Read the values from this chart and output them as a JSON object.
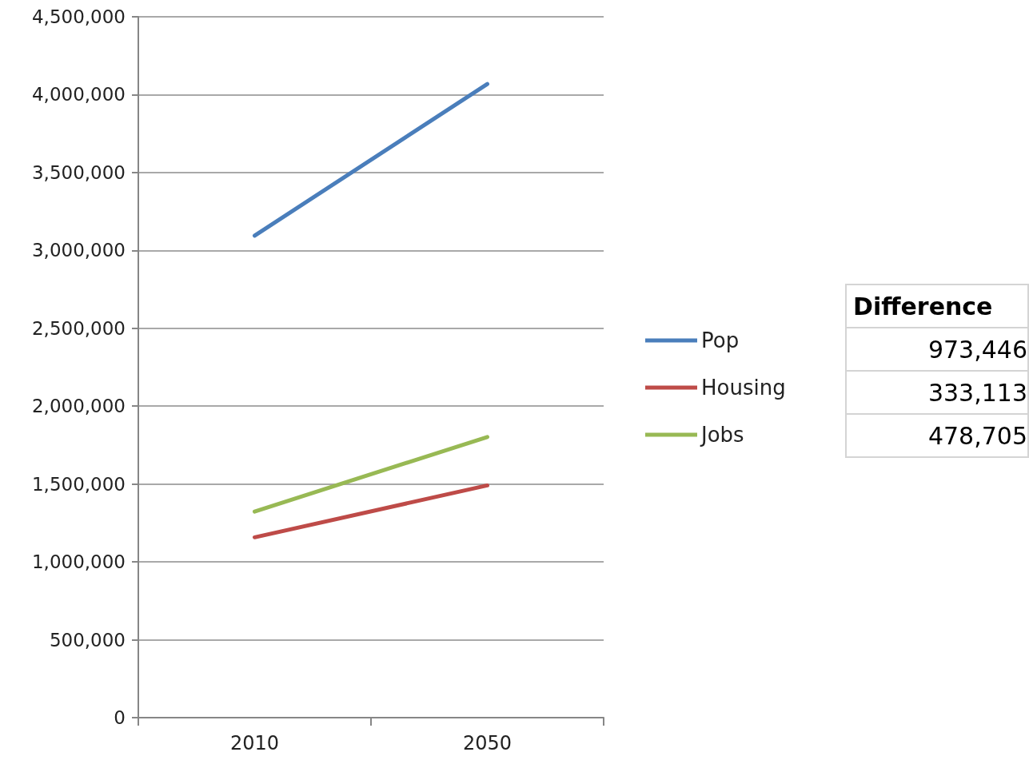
{
  "chart_data": {
    "type": "line",
    "categories": [
      "2010",
      "2050"
    ],
    "series": [
      {
        "name": "Pop",
        "color": "#4a7ebb",
        "values": [
          3095000,
          4068000
        ]
      },
      {
        "name": "Housing",
        "color": "#be4b48",
        "values": [
          1158000,
          1491000
        ]
      },
      {
        "name": "Jobs",
        "color": "#98b954",
        "values": [
          1323000,
          1802000
        ]
      }
    ],
    "ylim": [
      0,
      4500000
    ],
    "yticks": [
      {
        "value": 0,
        "label": "0"
      },
      {
        "value": 500000,
        "label": "500,000"
      },
      {
        "value": 1000000,
        "label": "1,000,000"
      },
      {
        "value": 1500000,
        "label": "1,500,000"
      },
      {
        "value": 2000000,
        "label": "2,000,000"
      },
      {
        "value": 2500000,
        "label": "2,500,000"
      },
      {
        "value": 3000000,
        "label": "3,000,000"
      },
      {
        "value": 3500000,
        "label": "3,500,000"
      },
      {
        "value": 4000000,
        "label": "4,000,000"
      },
      {
        "value": 4500000,
        "label": "4,500,000"
      }
    ],
    "grid": "y",
    "legend": "right",
    "marker": "none",
    "line_style": "solid",
    "annotations": [
      "Difference",
      "973,446",
      "333,113",
      "478,705"
    ]
  }
}
